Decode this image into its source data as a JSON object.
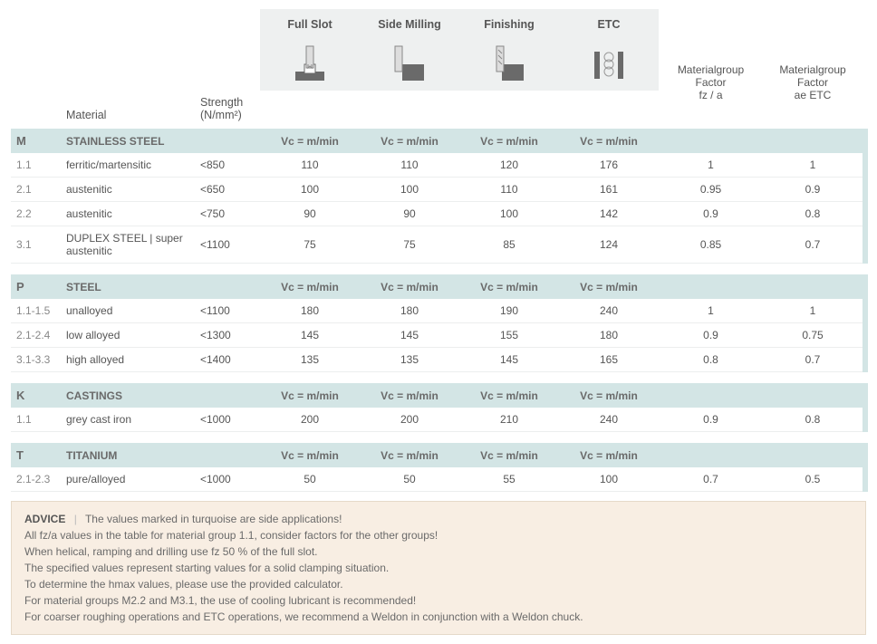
{
  "columns": {
    "material": "Material",
    "strength": "Strength (N/mm²)",
    "ops": [
      "Full Slot",
      "Side Milling",
      "Finishing",
      "ETC"
    ],
    "factor1_l1": "Materialgroup",
    "factor1_l2": "Factor",
    "factor1_l3": "fz / a",
    "factor2_l1": "Materialgroup",
    "factor2_l2": "Factor",
    "factor2_l3": "ae ETC"
  },
  "vc_label": "Vc = m/min",
  "groups": [
    {
      "code": "M",
      "name": "STAINLESS STEEL",
      "bar": "bar-m",
      "rows": [
        {
          "code": "1.1",
          "mat": "ferritic/martensitic",
          "str": "<850",
          "v": [
            "110",
            "110",
            "120",
            "176"
          ],
          "f1": "1",
          "f2": "1"
        },
        {
          "code": "2.1",
          "mat": "austenitic",
          "str": "<650",
          "v": [
            "100",
            "100",
            "110",
            "161"
          ],
          "f1": "0.95",
          "f2": "0.9"
        },
        {
          "code": "2.2",
          "mat": "austenitic",
          "str": "<750",
          "v": [
            "90",
            "90",
            "100",
            "142"
          ],
          "f1": "0.9",
          "f2": "0.8"
        },
        {
          "code": "3.1",
          "mat": "DUPLEX STEEL | super austenitic",
          "str": "<1100",
          "v": [
            "75",
            "75",
            "85",
            "124"
          ],
          "f1": "0.85",
          "f2": "0.7"
        }
      ]
    },
    {
      "code": "P",
      "name": "STEEL",
      "bar": "bar-p",
      "rows": [
        {
          "code": "1.1-1.5",
          "mat": "unalloyed",
          "str": "<1100",
          "v": [
            "180",
            "180",
            "190",
            "240"
          ],
          "f1": "1",
          "f2": "1"
        },
        {
          "code": "2.1-2.4",
          "mat": "low alloyed",
          "str": "<1300",
          "v": [
            "145",
            "145",
            "155",
            "180"
          ],
          "f1": "0.9",
          "f2": "0.75"
        },
        {
          "code": "3.1-3.3",
          "mat": "high alloyed",
          "str": "<1400",
          "v": [
            "135",
            "135",
            "145",
            "165"
          ],
          "f1": "0.8",
          "f2": "0.7"
        }
      ]
    },
    {
      "code": "K",
      "name": "CASTINGS",
      "bar": "bar-k",
      "rows": [
        {
          "code": "1.1",
          "mat": "grey cast iron",
          "str": "<1000",
          "v": [
            "200",
            "200",
            "210",
            "240"
          ],
          "f1": "0.9",
          "f2": "0.8"
        }
      ]
    },
    {
      "code": "T",
      "name": "TITANIUM",
      "bar": "bar-t",
      "rows": [
        {
          "code": "2.1-2.3",
          "mat": "pure/alloyed",
          "str": "<1000",
          "v": [
            "50",
            "50",
            "55",
            "100"
          ],
          "f1": "0.7",
          "f2": "0.5"
        }
      ]
    }
  ],
  "advice": {
    "title": "ADVICE",
    "lines": [
      "The values marked in turquoise are side applications!",
      "All fz/a values in the table for material group 1.1, consider factors for the other groups!",
      "When helical, ramping and drilling use fz 50 % of the full slot.",
      "The specified values represent starting values for a solid clamping situation.",
      "To determine the hmax values, please use the provided calculator.",
      "For material groups M2.2 and M3.1, the use of cooling lubricant is recommended!",
      "For coarser roughing operations and ETC operations, we recommend a Weldon in conjunction with a Weldon chuck."
    ]
  },
  "colors": {
    "group_bg": "#d3e5e5",
    "header_bg": "#eef0f0",
    "advice_bg": "#f8eee3",
    "text": "#555555"
  }
}
